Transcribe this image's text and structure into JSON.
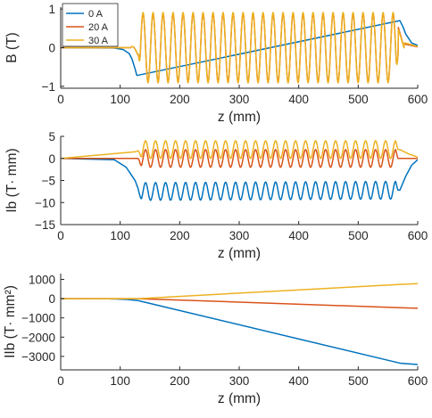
{
  "chart_data": [
    {
      "type": "line",
      "xlabel": "z (mm)",
      "ylabel": "B (T)",
      "xlim": [
        0,
        600
      ],
      "ylim": [
        -1.05,
        1.05
      ],
      "xticks": [
        0,
        100,
        200,
        300,
        400,
        500,
        600
      ],
      "yticks": [
        -1,
        0,
        1
      ],
      "legend": "top-left",
      "series": [
        {
          "name": "0 A",
          "color": "#0072BD",
          "x": [
            0,
            90,
            105,
            115,
            120,
            125,
            128,
            570,
            575,
            580,
            590,
            600
          ],
          "y": [
            0,
            -0.01,
            -0.05,
            -0.15,
            -0.3,
            -0.55,
            -0.72,
            0.7,
            0.55,
            0.35,
            0.12,
            0.06
          ]
        },
        {
          "name": "20 A",
          "color": "#D95319",
          "model": "undulator",
          "amplitude": 0.9,
          "periods": 26,
          "start": 130,
          "end": 567
        },
        {
          "name": "30 A",
          "color": "#EDB120",
          "model": "undulator",
          "amplitude": 0.93,
          "periods": 26,
          "start": 130,
          "end": 567
        }
      ]
    },
    {
      "type": "line",
      "xlabel": "z (mm)",
      "ylabel": "Ib (T· mm)",
      "xlim": [
        0,
        600
      ],
      "ylim": [
        -15,
        5
      ],
      "xticks": [
        0,
        100,
        200,
        300,
        400,
        500,
        600
      ],
      "yticks": [
        -15,
        -10,
        -5,
        0,
        5
      ],
      "series": [
        {
          "name": "0 A",
          "color": "#0072BD",
          "baseline": [
            [
              0,
              0
            ],
            [
              90,
              -0.3
            ],
            [
              110,
              -2
            ],
            [
              125,
              -5
            ],
            [
              132,
              -7.5
            ],
            [
              570,
              -7.2
            ],
            [
              580,
              -4
            ],
            [
              590,
              -1.5
            ],
            [
              600,
              -0.3
            ]
          ],
          "amplitude": 2.0
        },
        {
          "name": "20 A",
          "color": "#D95319",
          "baseline": [
            [
              0,
              0
            ],
            [
              130,
              0
            ],
            [
              570,
              0
            ],
            [
              600,
              0
            ]
          ],
          "amplitude": 2.0
        },
        {
          "name": "30 A",
          "color": "#EDB120",
          "baseline": [
            [
              0,
              0
            ],
            [
              125,
              1.5
            ],
            [
              135,
              2
            ],
            [
              570,
              2
            ],
            [
              585,
              1
            ],
            [
              600,
              0.3
            ]
          ],
          "amplitude": 2.0
        }
      ]
    },
    {
      "type": "line",
      "xlabel": "z (mm)",
      "ylabel": "IIb (T· mm²)",
      "xlim": [
        0,
        600
      ],
      "ylim": [
        -3700,
        1300
      ],
      "xticks": [
        0,
        100,
        200,
        300,
        400,
        500,
        600
      ],
      "yticks": [
        -3000,
        -2000,
        -1000,
        0,
        1000
      ],
      "series": [
        {
          "name": "0 A",
          "color": "#0072BD",
          "x": [
            0,
            80,
            110,
            130,
            570,
            600
          ],
          "y": [
            0,
            -5,
            -40,
            -100,
            -3350,
            -3420
          ]
        },
        {
          "name": "20 A",
          "color": "#D95319",
          "x": [
            0,
            130,
            570,
            600
          ],
          "y": [
            0,
            0,
            -470,
            -500
          ]
        },
        {
          "name": "30 A",
          "color": "#EDB120",
          "x": [
            0,
            130,
            570,
            600
          ],
          "y": [
            0,
            0,
            740,
            780
          ]
        }
      ]
    }
  ]
}
